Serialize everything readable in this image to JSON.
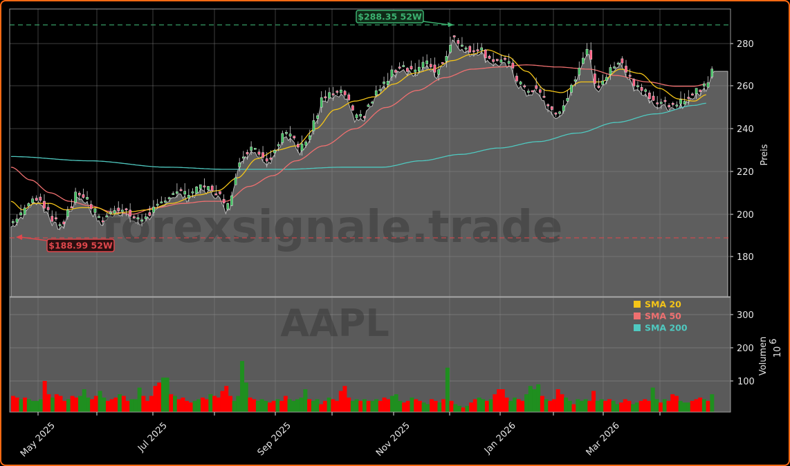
{
  "chart_data": {
    "type": "candlestick",
    "ticker": "AAPL",
    "watermark": "forexsignale.trade",
    "price_panel": {
      "ylabel": "Preis",
      "yticks": [
        180,
        200,
        220,
        240,
        260,
        280
      ],
      "ylim": [
        163,
        296
      ],
      "grid": true
    },
    "volume_panel": {
      "ylabel": "Volumen",
      "yunit": "10^6",
      "yunit_base": "10",
      "yunit_exp": "6",
      "yticks": [
        100,
        200,
        300
      ],
      "ylim": [
        0,
        345
      ],
      "up_color": "#1f8f1f",
      "down_color": "#ff0000"
    },
    "x_ticks": [
      "May 2025",
      "Jul 2025",
      "Sep 2025",
      "Nov 2025",
      "Jan 2026",
      "Mar 2026"
    ],
    "annotations": {
      "high": {
        "label": "$288.35 52W",
        "value": 288.35,
        "color": "#3cb371"
      },
      "low": {
        "label": "$188.99 52W",
        "value": 188.99,
        "color": "#e0474c"
      }
    },
    "legend": [
      {
        "label": "SMA 20",
        "color": "#f5c518"
      },
      {
        "label": "SMA 50",
        "color": "#f07070"
      },
      {
        "label": "SMA 200",
        "color": "#4fc9c0"
      }
    ],
    "close_series_anchors": [
      [
        0,
        196
      ],
      [
        6,
        201
      ],
      [
        10,
        206
      ],
      [
        14,
        208
      ],
      [
        18,
        203
      ],
      [
        22,
        197
      ],
      [
        26,
        195
      ],
      [
        30,
        203
      ],
      [
        34,
        210
      ],
      [
        38,
        208
      ],
      [
        42,
        202
      ],
      [
        46,
        197
      ],
      [
        50,
        200
      ],
      [
        54,
        203
      ],
      [
        58,
        202
      ],
      [
        62,
        199
      ],
      [
        66,
        197
      ],
      [
        70,
        200
      ],
      [
        74,
        203
      ],
      [
        78,
        205
      ],
      [
        82,
        210
      ],
      [
        86,
        211
      ],
      [
        90,
        209
      ],
      [
        94,
        211
      ],
      [
        98,
        213
      ],
      [
        102,
        212
      ],
      [
        106,
        210
      ],
      [
        110,
        203
      ],
      [
        112,
        205
      ],
      [
        114,
        215
      ],
      [
        116,
        222
      ],
      [
        120,
        229
      ],
      [
        124,
        232
      ],
      [
        128,
        228
      ],
      [
        132,
        226
      ],
      [
        136,
        232
      ],
      [
        140,
        238
      ],
      [
        144,
        236
      ],
      [
        148,
        231
      ],
      [
        152,
        236
      ],
      [
        156,
        245
      ],
      [
        160,
        255
      ],
      [
        164,
        256
      ],
      [
        168,
        257
      ],
      [
        172,
        256
      ],
      [
        174,
        250
      ],
      [
        176,
        245
      ],
      [
        180,
        246
      ],
      [
        184,
        252
      ],
      [
        188,
        258
      ],
      [
        192,
        262
      ],
      [
        196,
        267
      ],
      [
        200,
        270
      ],
      [
        204,
        268
      ],
      [
        208,
        268
      ],
      [
        212,
        271
      ],
      [
        216,
        269
      ],
      [
        218,
        266
      ],
      [
        220,
        270
      ],
      [
        224,
        276
      ],
      [
        226,
        284
      ],
      [
        228,
        282
      ],
      [
        232,
        278
      ],
      [
        236,
        277
      ],
      [
        240,
        278
      ],
      [
        244,
        274
      ],
      [
        248,
        272
      ],
      [
        252,
        272
      ],
      [
        256,
        270
      ],
      [
        260,
        262
      ],
      [
        264,
        258
      ],
      [
        268,
        259
      ],
      [
        272,
        256
      ],
      [
        276,
        249
      ],
      [
        280,
        247
      ],
      [
        284,
        252
      ],
      [
        288,
        262
      ],
      [
        292,
        271
      ],
      [
        296,
        277
      ],
      [
        298,
        266
      ],
      [
        300,
        259
      ],
      [
        304,
        264
      ],
      [
        308,
        268
      ],
      [
        312,
        273
      ],
      [
        316,
        266
      ],
      [
        320,
        260
      ],
      [
        324,
        259
      ],
      [
        328,
        255
      ],
      [
        332,
        252
      ],
      [
        336,
        252
      ],
      [
        340,
        250
      ],
      [
        344,
        253
      ],
      [
        348,
        256
      ],
      [
        352,
        258
      ],
      [
        356,
        261
      ],
      [
        360,
        270
      ]
    ],
    "sma20_anchors": [
      [
        0,
        206
      ],
      [
        6,
        202
      ],
      [
        12,
        205
      ],
      [
        20,
        205
      ],
      [
        28,
        202
      ],
      [
        36,
        203
      ],
      [
        44,
        203
      ],
      [
        52,
        200
      ],
      [
        60,
        201
      ],
      [
        70,
        202
      ],
      [
        82,
        205
      ],
      [
        96,
        209
      ],
      [
        106,
        211
      ],
      [
        116,
        217
      ],
      [
        126,
        226
      ],
      [
        136,
        230
      ],
      [
        146,
        232
      ],
      [
        156,
        240
      ],
      [
        166,
        249
      ],
      [
        176,
        253
      ],
      [
        186,
        255
      ],
      [
        196,
        261
      ],
      [
        206,
        266
      ],
      [
        216,
        268
      ],
      [
        226,
        272
      ],
      [
        236,
        275
      ],
      [
        244,
        277
      ],
      [
        254,
        274
      ],
      [
        264,
        267
      ],
      [
        274,
        258
      ],
      [
        282,
        257
      ],
      [
        292,
        262
      ],
      [
        302,
        262
      ],
      [
        312,
        268
      ],
      [
        322,
        266
      ],
      [
        332,
        259
      ],
      [
        342,
        254
      ],
      [
        350,
        253
      ],
      [
        356,
        256
      ]
    ],
    "sma50_anchors": [
      [
        0,
        222
      ],
      [
        10,
        216
      ],
      [
        20,
        210
      ],
      [
        30,
        206
      ],
      [
        40,
        204
      ],
      [
        52,
        201
      ],
      [
        62,
        200
      ],
      [
        74,
        203
      ],
      [
        88,
        205
      ],
      [
        100,
        206
      ],
      [
        110,
        206
      ],
      [
        122,
        213
      ],
      [
        134,
        218
      ],
      [
        146,
        225
      ],
      [
        160,
        232
      ],
      [
        176,
        240
      ],
      [
        192,
        250
      ],
      [
        208,
        258
      ],
      [
        222,
        264
      ],
      [
        236,
        268
      ],
      [
        250,
        269
      ],
      [
        264,
        270
      ],
      [
        280,
        269
      ],
      [
        296,
        268
      ],
      [
        310,
        265
      ],
      [
        326,
        262
      ],
      [
        340,
        260
      ],
      [
        350,
        260
      ],
      [
        356,
        261
      ]
    ],
    "sma200_anchors": [
      [
        0,
        227
      ],
      [
        40,
        225
      ],
      [
        80,
        222
      ],
      [
        110,
        221
      ],
      [
        140,
        221
      ],
      [
        170,
        222
      ],
      [
        190,
        222
      ],
      [
        210,
        225
      ],
      [
        230,
        228
      ],
      [
        250,
        231
      ],
      [
        270,
        234
      ],
      [
        290,
        238
      ],
      [
        310,
        243
      ],
      [
        330,
        247
      ],
      [
        350,
        251
      ],
      [
        356,
        252
      ]
    ],
    "volume_seed_pattern": [
      [
        55,
        "d"
      ],
      [
        50,
        "d"
      ],
      [
        45,
        "u"
      ],
      [
        50,
        "d"
      ],
      [
        45,
        "u"
      ],
      [
        40,
        "u"
      ],
      [
        40,
        "u"
      ],
      [
        45,
        "u"
      ],
      [
        100,
        "d"
      ],
      [
        60,
        "d"
      ],
      [
        50,
        "u"
      ],
      [
        60,
        "d"
      ],
      [
        55,
        "d"
      ],
      [
        40,
        "d"
      ],
      [
        45,
        "u"
      ],
      [
        55,
        "d"
      ],
      [
        50,
        "d"
      ],
      [
        55,
        "u"
      ],
      [
        75,
        "u"
      ],
      [
        50,
        "u"
      ],
      [
        45,
        "d"
      ],
      [
        55,
        "d"
      ],
      [
        70,
        "u"
      ],
      [
        50,
        "u"
      ],
      [
        40,
        "d"
      ],
      [
        45,
        "d"
      ],
      [
        50,
        "d"
      ],
      [
        60,
        "u"
      ],
      [
        55,
        "d"
      ],
      [
        40,
        "d"
      ],
      [
        45,
        "u"
      ],
      [
        45,
        "u"
      ],
      [
        80,
        "u"
      ],
      [
        55,
        "d"
      ],
      [
        40,
        "d"
      ],
      [
        55,
        "d"
      ],
      [
        85,
        "d"
      ],
      [
        95,
        "d"
      ],
      [
        110,
        "u"
      ],
      [
        110,
        "u"
      ],
      [
        60,
        "d"
      ],
      [
        55,
        "u"
      ],
      [
        45,
        "d"
      ],
      [
        50,
        "d"
      ],
      [
        40,
        "d"
      ],
      [
        35,
        "d"
      ],
      [
        40,
        "u"
      ],
      [
        45,
        "u"
      ],
      [
        50,
        "d"
      ],
      [
        45,
        "d"
      ],
      [
        60,
        "u"
      ],
      [
        55,
        "d"
      ],
      [
        50,
        "d"
      ],
      [
        70,
        "d"
      ],
      [
        85,
        "d"
      ],
      [
        55,
        "d"
      ],
      [
        40,
        "u"
      ],
      [
        55,
        "u"
      ],
      [
        160,
        "u"
      ],
      [
        95,
        "u"
      ],
      [
        50,
        "d"
      ],
      [
        45,
        "d"
      ],
      [
        40,
        "u"
      ],
      [
        45,
        "u"
      ],
      [
        40,
        "u"
      ],
      [
        35,
        "d"
      ],
      [
        40,
        "d"
      ],
      [
        45,
        "u"
      ],
      [
        40,
        "d"
      ],
      [
        55,
        "d"
      ],
      [
        45,
        "u"
      ],
      [
        40,
        "u"
      ],
      [
        45,
        "u"
      ],
      [
        50,
        "u"
      ],
      [
        75,
        "u"
      ],
      [
        45,
        "d"
      ],
      [
        40,
        "u"
      ],
      [
        45,
        "u"
      ],
      [
        30,
        "d"
      ],
      [
        40,
        "d"
      ],
      [
        50,
        "u"
      ],
      [
        45,
        "d"
      ],
      [
        40,
        "d"
      ],
      [
        70,
        "d"
      ],
      [
        85,
        "d"
      ],
      [
        50,
        "d"
      ],
      [
        40,
        "u"
      ],
      [
        45,
        "u"
      ],
      [
        40,
        "d"
      ],
      [
        45,
        "u"
      ],
      [
        40,
        "d"
      ],
      [
        40,
        "u"
      ],
      [
        45,
        "u"
      ],
      [
        40,
        "d"
      ],
      [
        50,
        "d"
      ],
      [
        45,
        "d"
      ],
      [
        55,
        "u"
      ],
      [
        60,
        "u"
      ],
      [
        40,
        "u"
      ],
      [
        35,
        "d"
      ],
      [
        40,
        "d"
      ],
      [
        50,
        "u"
      ],
      [
        45,
        "d"
      ],
      [
        40,
        "d"
      ],
      [
        35,
        "u"
      ],
      [
        30,
        "u"
      ],
      [
        45,
        "d"
      ],
      [
        40,
        "d"
      ],
      [
        35,
        "u"
      ],
      [
        45,
        "d"
      ],
      [
        140,
        "u"
      ],
      [
        40,
        "d"
      ],
      [
        30,
        "u"
      ],
      [
        25,
        "u"
      ],
      [
        20,
        "d"
      ],
      [
        25,
        "u"
      ],
      [
        35,
        "d"
      ],
      [
        45,
        "d"
      ],
      [
        50,
        "u"
      ],
      [
        45,
        "u"
      ],
      [
        40,
        "d"
      ],
      [
        45,
        "u"
      ],
      [
        60,
        "d"
      ],
      [
        75,
        "d"
      ],
      [
        75,
        "d"
      ],
      [
        50,
        "d"
      ],
      [
        40,
        "u"
      ],
      [
        50,
        "u"
      ],
      [
        45,
        "d"
      ],
      [
        40,
        "d"
      ],
      [
        60,
        "u"
      ],
      [
        85,
        "u"
      ],
      [
        75,
        "u"
      ],
      [
        90,
        "u"
      ],
      [
        55,
        "d"
      ],
      [
        45,
        "u"
      ],
      [
        40,
        "d"
      ],
      [
        45,
        "d"
      ],
      [
        75,
        "d"
      ],
      [
        60,
        "d"
      ],
      [
        50,
        "u"
      ],
      [
        40,
        "u"
      ],
      [
        30,
        "d"
      ],
      [
        45,
        "u"
      ],
      [
        40,
        "u"
      ],
      [
        45,
        "u"
      ],
      [
        40,
        "d"
      ],
      [
        70,
        "d"
      ],
      [
        40,
        "u"
      ],
      [
        45,
        "u"
      ],
      [
        40,
        "d"
      ],
      [
        45,
        "d"
      ],
      [
        40,
        "u"
      ],
      [
        30,
        "u"
      ],
      [
        35,
        "d"
      ],
      [
        45,
        "d"
      ],
      [
        40,
        "d"
      ],
      [
        30,
        "u"
      ],
      [
        35,
        "u"
      ],
      [
        40,
        "d"
      ],
      [
        45,
        "d"
      ],
      [
        40,
        "d"
      ],
      [
        80,
        "u"
      ],
      [
        45,
        "u"
      ],
      [
        35,
        "d"
      ],
      [
        45,
        "u"
      ],
      [
        40,
        "d"
      ],
      [
        60,
        "d"
      ],
      [
        55,
        "d"
      ],
      [
        40,
        "u"
      ],
      [
        35,
        "u"
      ],
      [
        35,
        "u"
      ],
      [
        40,
        "d"
      ],
      [
        45,
        "d"
      ],
      [
        50,
        "d"
      ],
      [
        45,
        "u"
      ],
      [
        40,
        "d"
      ],
      [
        60,
        "u"
      ]
    ]
  },
  "labels": {
    "high_annotation": "$288.35 52W",
    "low_annotation": "$188.99 52W",
    "price_axis_title": "Preis",
    "volume_axis_title": "Volumen",
    "volume_unit_base": "10",
    "volume_unit_exp": "6",
    "watermark_site": "forexsignale.trade",
    "watermark_ticker": "AAPL",
    "legend_sma20": "SMA 20",
    "legend_sma50": "SMA 50",
    "legend_sma200": "SMA 200",
    "price_ticks": [
      "180",
      "200",
      "220",
      "240",
      "260",
      "280"
    ],
    "volume_ticks": [
      "100",
      "200",
      "300"
    ],
    "x_ticks": [
      "May 2025",
      "Jul 2025",
      "Sep 2025",
      "Nov 2025",
      "Jan 2026",
      "Mar 2026"
    ]
  }
}
